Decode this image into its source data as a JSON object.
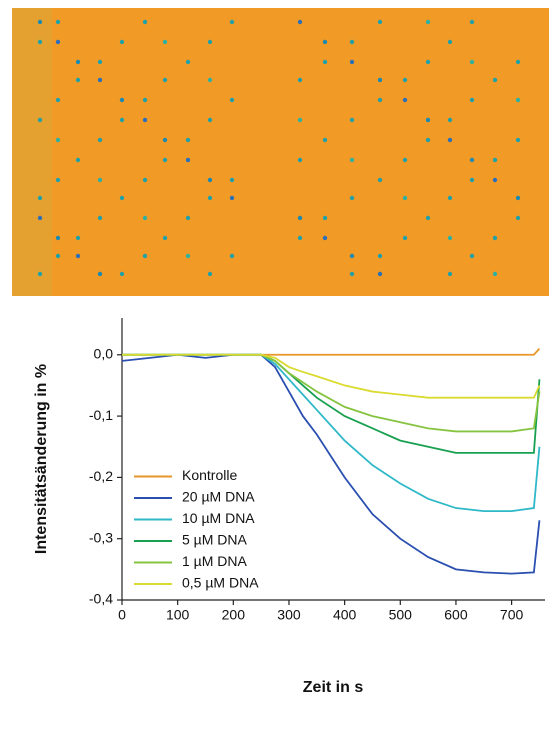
{
  "chart_data": {
    "type": "line",
    "x_label": "Zeit in s",
    "y_label": "Intensitätsänderung in %",
    "x": [
      0,
      50,
      100,
      150,
      200,
      250,
      275,
      300,
      325,
      350,
      400,
      450,
      500,
      550,
      600,
      650,
      700,
      740,
      750
    ],
    "series": [
      {
        "name": "Kontrolle",
        "color": "#e8962a",
        "values": [
          0,
          0,
          0,
          0,
          0,
          0,
          0,
          0,
          0,
          0,
          0,
          0,
          0,
          0,
          0,
          0,
          0,
          0,
          0.01
        ]
      },
      {
        "name": "20 µM DNA",
        "color": "#2a4fb0",
        "values": [
          -0.01,
          -0.005,
          0,
          -0.005,
          0,
          0,
          -0.02,
          -0.06,
          -0.1,
          -0.13,
          -0.2,
          -0.26,
          -0.3,
          -0.33,
          -0.35,
          -0.355,
          -0.357,
          -0.355,
          -0.27
        ]
      },
      {
        "name": "10 µM DNA",
        "color": "#2fb8c8",
        "values": [
          0,
          0,
          0,
          0,
          0,
          0,
          -0.015,
          -0.04,
          -0.065,
          -0.09,
          -0.14,
          -0.18,
          -0.21,
          -0.235,
          -0.25,
          -0.255,
          -0.255,
          -0.25,
          -0.15
        ]
      },
      {
        "name": "5 µM DNA",
        "color": "#18a050",
        "values": [
          0,
          0,
          0,
          0,
          0,
          0,
          -0.01,
          -0.03,
          -0.05,
          -0.07,
          -0.1,
          -0.12,
          -0.14,
          -0.15,
          -0.16,
          -0.16,
          -0.16,
          -0.16,
          -0.04
        ]
      },
      {
        "name": "1 µM DNA",
        "color": "#86c440",
        "values": [
          0,
          0,
          0,
          0,
          0,
          0,
          -0.01,
          -0.03,
          -0.045,
          -0.06,
          -0.085,
          -0.1,
          -0.11,
          -0.12,
          -0.125,
          -0.125,
          -0.125,
          -0.12,
          -0.06
        ]
      },
      {
        "name": "0,5 µM DNA",
        "color": "#dada30",
        "values": [
          0,
          0,
          0,
          0,
          0,
          0,
          -0.005,
          -0.02,
          -0.028,
          -0.035,
          -0.05,
          -0.06,
          -0.065,
          -0.07,
          -0.07,
          -0.07,
          -0.07,
          -0.07,
          -0.05
        ]
      }
    ],
    "xlim": [
      0,
      760
    ],
    "xticks": [
      0,
      100,
      200,
      300,
      400,
      500,
      600,
      700
    ],
    "ylim": [
      -0.4,
      0.06
    ],
    "yticks": [
      {
        "value": -0.4,
        "label": "-0,4"
      },
      {
        "value": -0.3,
        "label": "-0,3"
      },
      {
        "value": -0.2,
        "label": "-0,2"
      },
      {
        "value": -0.1,
        "label": "-0,1"
      },
      {
        "value": 0,
        "label": "0,0"
      }
    ],
    "legend": "lower left"
  }
}
